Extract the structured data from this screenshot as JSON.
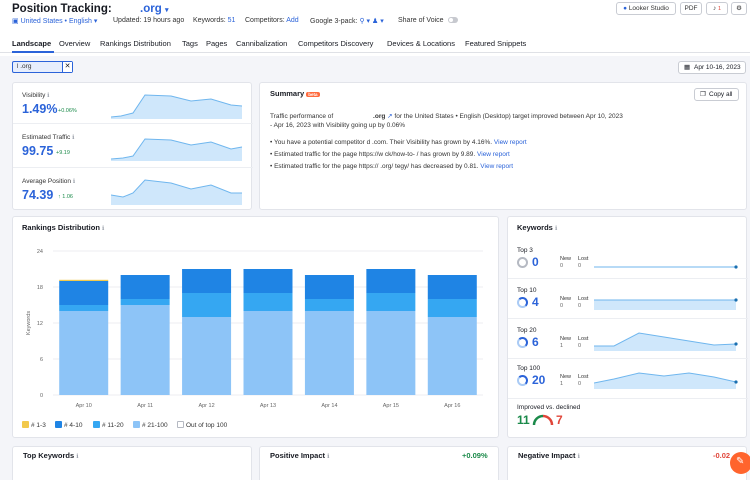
{
  "header": {
    "title": "Position Tracking:",
    "domain": ".org",
    "location": "United States • English",
    "updated": "Updated: 19 hours ago",
    "keywords_label": "Keywords:",
    "keywords_count": "51",
    "competitors_label": "Competitors:",
    "competitors_add": "Add",
    "google_pack_label": "Google 3-pack:",
    "share_of_voice": "Share of Voice",
    "looker_studio": "Looker Studio",
    "pdf": "PDF",
    "notification_count": "1"
  },
  "tabs": [
    "Landscape",
    "Overview",
    "Rankings Distribution",
    "Tags",
    "Pages",
    "Cannibalization",
    "Competitors Discovery",
    "Devices & Locations",
    "Featured Snippets"
  ],
  "filter": {
    "chip_label": "l .org",
    "date_range": "Apr 10-16, 2023"
  },
  "metrics": [
    {
      "label": "Visibility",
      "value": "1.49%",
      "delta": "+0.06%"
    },
    {
      "label": "Estimated Traffic",
      "value": "99.75",
      "delta": "+9.19"
    },
    {
      "label": "Average Position",
      "value": "74.39",
      "delta": "1.06"
    }
  ],
  "summary": {
    "title": "Summary",
    "beta": "beta",
    "copy_all": "Copy all",
    "intro_a": "Traffic performance of",
    "intro_domain": ".org",
    "intro_b": "for the United States • English (Desktop) target improved between Apr 10, 2023",
    "intro_c": "- Apr 16, 2023 with Visibility going up by 0.06%",
    "bullets": [
      {
        "text": "You have a potential competitor d          .com. Their Visibility has grown by 4.16%.",
        "link": "View report"
      },
      {
        "text": "Estimated traffic for the page https://w            ck/how-to-       / has grown by 9.89.",
        "link": "View report"
      },
      {
        "text": "Estimated traffic for the page https://           .org/          tegy/ has decreased by 0.81.",
        "link": "View report"
      }
    ]
  },
  "rankings": {
    "title": "Rankings Distribution",
    "legend": [
      "# 1-3",
      "# 4-10",
      "# 11-20",
      "# 21-100",
      "Out of top 100"
    ]
  },
  "chart_data": {
    "type": "bar",
    "stacked": true,
    "title": "Rankings Distribution",
    "ylabel": "Keywords",
    "ylim": [
      0,
      24
    ],
    "yticks": [
      0,
      6,
      12,
      18,
      24
    ],
    "grid": true,
    "legend_position": "bottom",
    "categories": [
      "Apr 10",
      "Apr 11",
      "Apr 12",
      "Apr 13",
      "Apr 14",
      "Apr 15",
      "Apr 16"
    ],
    "series": [
      {
        "name": "# 21-100",
        "color": "#8dc4f7",
        "values": [
          14,
          15,
          13,
          14,
          14,
          14,
          13
        ]
      },
      {
        "name": "# 11-20",
        "color": "#35a7f2",
        "values": [
          1,
          1,
          4,
          3,
          2,
          3,
          3
        ]
      },
      {
        "name": "# 4-10",
        "color": "#1f84e4",
        "values": [
          4,
          4,
          4,
          4,
          4,
          4,
          4
        ]
      },
      {
        "name": "# 1-3",
        "color": "#f2c94c",
        "values": [
          0.2,
          0,
          0,
          0,
          0,
          0,
          0
        ]
      }
    ]
  },
  "keywords": {
    "title": "Keywords",
    "new_label": "New",
    "lost_label": "Lost",
    "groups": [
      {
        "label": "Top 3",
        "value": "0",
        "new": "0",
        "lost": "0"
      },
      {
        "label": "Top 10",
        "value": "4",
        "new": "0",
        "lost": "0"
      },
      {
        "label": "Top 20",
        "value": "6",
        "new": "1",
        "lost": "0"
      },
      {
        "label": "Top 100",
        "value": "20",
        "new": "1",
        "lost": "0"
      }
    ],
    "improved_label": "Improved vs. declined",
    "improved": "11",
    "declined": "7"
  },
  "bottom": {
    "top_keywords": "Top Keywords",
    "positive_impact": "Positive Impact",
    "positive_value": "+0.09%",
    "negative_impact": "Negative Impact",
    "negative_value": "-0.02"
  },
  "colors": {
    "accent": "#2b63d9",
    "positive": "#1b8a4a",
    "negative": "#e0463a",
    "area_fill": "#cfe7fb",
    "area_line": "#6fb6ee"
  }
}
